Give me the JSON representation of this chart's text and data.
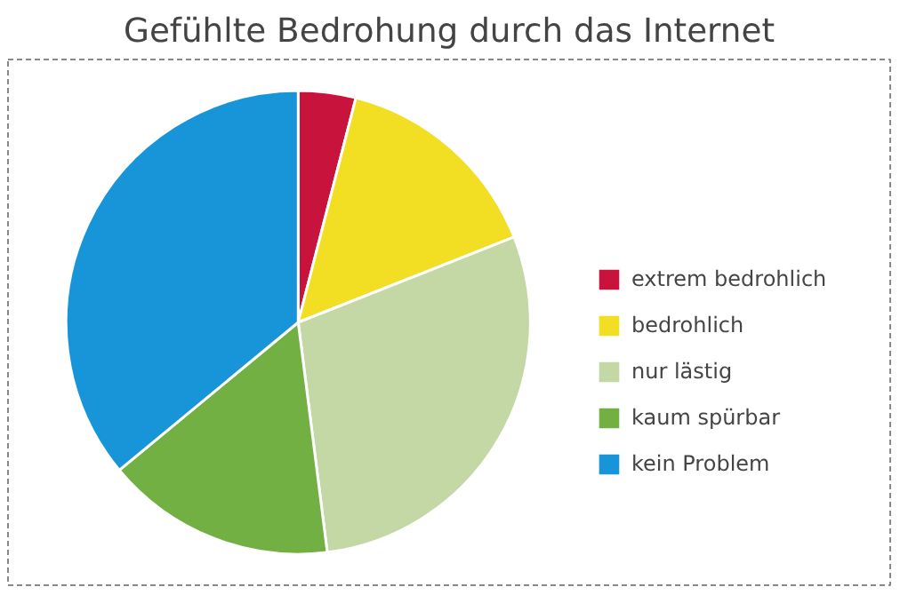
{
  "chart_data": {
    "type": "pie",
    "title": "Gefühlte Bedrohung durch das Internet",
    "categories": [
      "extrem bedrohlich",
      "bedrohlich",
      "nur lästig",
      "kaum spürbar",
      "kein Problem"
    ],
    "values": [
      4,
      15,
      29,
      16,
      36
    ],
    "colors": [
      "#c8143c",
      "#f2de22",
      "#c3d8a4",
      "#72b043",
      "#1795d8"
    ],
    "legend": "right"
  }
}
